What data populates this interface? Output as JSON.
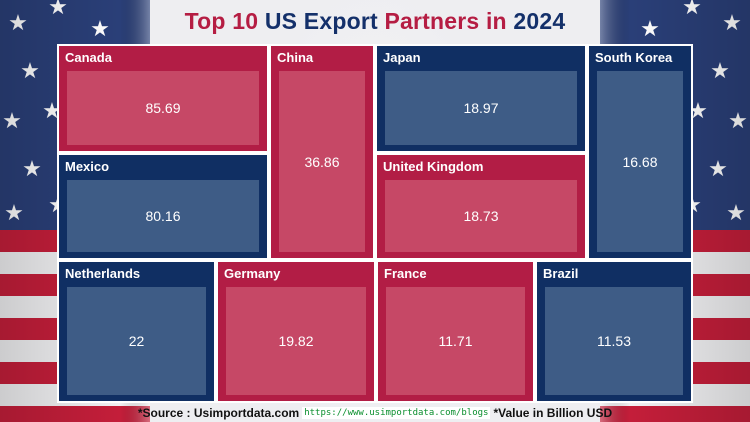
{
  "title": {
    "part1": "Top 10",
    "part2": "US Export",
    "part3": "Partners in",
    "part4": "2024"
  },
  "colors": {
    "tile_red": "#b21d45",
    "tile_red_inner": "#c64866",
    "tile_blue": "#102f63",
    "tile_blue_inner": "#3e5c86"
  },
  "chart_data": {
    "type": "treemap",
    "title": "Top 10 US Export Partners in 2024",
    "unit": "Billion USD",
    "categories": [
      "Canada",
      "Mexico",
      "China",
      "Japan",
      "United Kingdom",
      "South Korea",
      "Netherlands",
      "Germany",
      "France",
      "Brazil"
    ],
    "values": [
      "85.69",
      "80.16",
      "36.86",
      "18.97",
      "18.73",
      "16.68",
      "22",
      "19.82",
      "11.71",
      "11.53"
    ],
    "series_colors": [
      "red",
      "blue",
      "red",
      "blue",
      "red",
      "blue",
      "blue",
      "red",
      "red",
      "blue"
    ]
  },
  "footer": {
    "source": "*Source : Usimportdata.com",
    "url": "https://www.usimportdata.com/blogs",
    "note": "*Value in Billion USD"
  }
}
